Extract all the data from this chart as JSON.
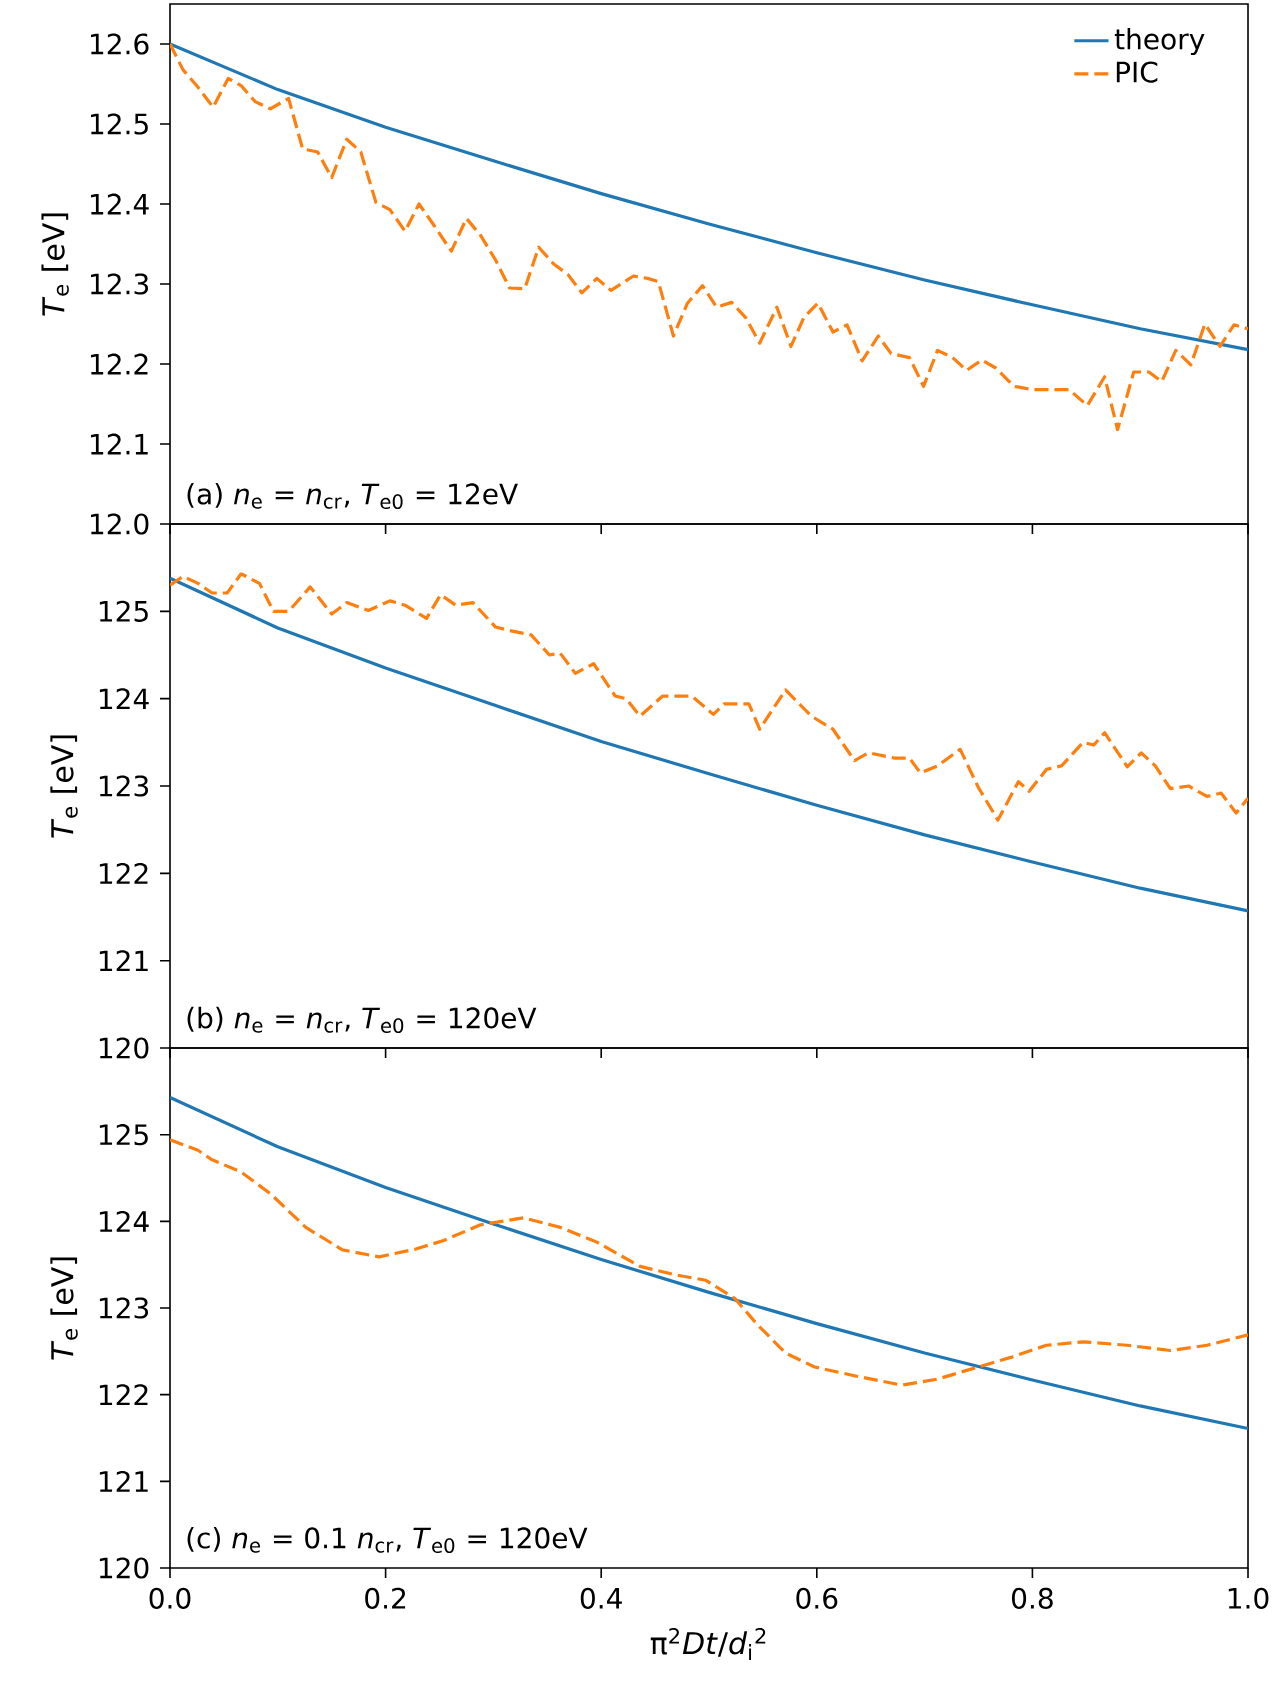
{
  "chart_data": [
    {
      "type": "line",
      "ylabel": "*T*$_{e}$ [eV]",
      "annotations": [
        "(a) *n*$_{e}$ = *n*$_{cr}$, *T*$_{e0}$ = 12eV"
      ],
      "xlim": [
        0,
        1
      ],
      "xticks": [
        {
          "value": 0,
          "label": null
        },
        {
          "value": 0.2,
          "label": null
        },
        {
          "value": 0.4,
          "label": null
        },
        {
          "value": 0.6,
          "label": null
        },
        {
          "value": 0.8,
          "label": null
        },
        {
          "value": 1,
          "label": null
        }
      ],
      "ylim": [
        12.0,
        12.65
      ],
      "yticks": [
        {
          "value": 12.0,
          "label": "12.0"
        },
        {
          "value": 12.1,
          "label": "12.1"
        },
        {
          "value": 12.2,
          "label": "12.2"
        },
        {
          "value": 12.3,
          "label": "12.3"
        },
        {
          "value": 12.4,
          "label": "12.4"
        },
        {
          "value": 12.5,
          "label": "12.5"
        },
        {
          "value": 12.6,
          "label": "12.6"
        }
      ],
      "tick_labels": "y",
      "legend": "top right",
      "series": [
        {
          "name": "theory",
          "color": "#1f77b4",
          "line_style": "solid",
          "x": [
            0,
            0.1,
            0.2,
            0.3,
            0.4,
            0.5,
            0.6,
            0.7,
            0.8,
            0.9,
            1.0
          ],
          "values": [
            12.6,
            12.543,
            12.496,
            12.454,
            12.413,
            12.375,
            12.339,
            12.305,
            12.274,
            12.244,
            12.218
          ]
        },
        {
          "name": "PIC",
          "color": "#ff7f0e",
          "line_style": "dashed",
          "x": [
            0,
            0.012,
            0.026,
            0.04,
            0.054,
            0.066,
            0.079,
            0.093,
            0.11,
            0.123,
            0.137,
            0.15,
            0.164,
            0.177,
            0.191,
            0.204,
            0.218,
            0.231,
            0.244,
            0.261,
            0.275,
            0.288,
            0.302,
            0.315,
            0.329,
            0.342,
            0.356,
            0.369,
            0.382,
            0.396,
            0.409,
            0.43,
            0.443,
            0.453,
            0.467,
            0.48,
            0.494,
            0.507,
            0.521,
            0.534,
            0.547,
            0.563,
            0.576,
            0.588,
            0.601,
            0.615,
            0.628,
            0.642,
            0.657,
            0.669,
            0.686,
            0.699,
            0.712,
            0.726,
            0.739,
            0.753,
            0.766,
            0.783,
            0.8,
            0.813,
            0.834,
            0.851,
            0.867,
            0.879,
            0.894,
            0.908,
            0.92,
            0.933,
            0.947,
            0.96,
            0.974,
            0.987,
            1.0
          ],
          "values": [
            12.6,
            12.568,
            12.546,
            12.521,
            12.557,
            12.548,
            12.528,
            12.519,
            12.532,
            12.469,
            12.465,
            12.433,
            12.481,
            12.465,
            12.402,
            12.393,
            12.366,
            12.4,
            12.375,
            12.341,
            12.382,
            12.361,
            12.33,
            12.295,
            12.294,
            12.346,
            12.325,
            12.312,
            12.289,
            12.307,
            12.292,
            12.31,
            12.307,
            12.303,
            12.235,
            12.276,
            12.298,
            12.271,
            12.277,
            12.258,
            12.226,
            12.271,
            12.222,
            12.258,
            12.276,
            12.24,
            12.249,
            12.204,
            12.235,
            12.213,
            12.208,
            12.172,
            12.217,
            12.208,
            12.192,
            12.205,
            12.195,
            12.172,
            12.168,
            12.168,
            12.168,
            12.148,
            12.184,
            12.118,
            12.19,
            12.19,
            12.178,
            12.217,
            12.199,
            12.25,
            12.222,
            12.249,
            12.244
          ]
        }
      ]
    },
    {
      "type": "line",
      "ylabel": "*T*$_{e}$ [eV]",
      "annotations": [
        "(b) *n*$_{e}$ = *n*$_{cr}$, *T*$_{e0}$ = 120eV"
      ],
      "xlim": [
        0,
        1
      ],
      "xticks": [
        {
          "value": 0,
          "label": null
        },
        {
          "value": 0.2,
          "label": null
        },
        {
          "value": 0.4,
          "label": null
        },
        {
          "value": 0.6,
          "label": null
        },
        {
          "value": 0.8,
          "label": null
        },
        {
          "value": 1,
          "label": null
        }
      ],
      "ylim": [
        120,
        126
      ],
      "yticks": [
        120,
        121,
        122,
        123,
        124,
        125
      ],
      "tick_labels": "y",
      "series": [
        {
          "color": "#1f77b4",
          "line_style": "solid",
          "x": [
            0,
            0.1,
            0.2,
            0.3,
            0.4,
            0.5,
            0.6,
            0.7,
            0.8,
            0.9,
            1.0
          ],
          "values": [
            125.38,
            124.81,
            124.35,
            123.93,
            123.51,
            123.14,
            122.78,
            122.44,
            122.13,
            121.83,
            121.57
          ]
        },
        {
          "color": "#ff7f0e",
          "line_style": "dashed",
          "x": [
            0,
            0.012,
            0.026,
            0.039,
            0.053,
            0.066,
            0.083,
            0.096,
            0.11,
            0.13,
            0.15,
            0.164,
            0.184,
            0.204,
            0.218,
            0.238,
            0.251,
            0.265,
            0.281,
            0.302,
            0.315,
            0.335,
            0.352,
            0.362,
            0.376,
            0.393,
            0.413,
            0.423,
            0.436,
            0.457,
            0.484,
            0.504,
            0.514,
            0.537,
            0.547,
            0.571,
            0.595,
            0.615,
            0.635,
            0.648,
            0.672,
            0.686,
            0.696,
            0.712,
            0.733,
            0.75,
            0.768,
            0.787,
            0.797,
            0.813,
            0.827,
            0.847,
            0.857,
            0.867,
            0.888,
            0.901,
            0.914,
            0.928,
            0.945,
            0.962,
            0.975,
            0.989,
            1.0
          ],
          "values": [
            125.3,
            125.4,
            125.32,
            125.21,
            125.21,
            125.43,
            125.32,
            125.0,
            125.0,
            125.28,
            124.97,
            125.1,
            125.01,
            125.12,
            125.07,
            124.92,
            125.19,
            125.07,
            125.1,
            124.82,
            124.78,
            124.73,
            124.5,
            124.52,
            124.29,
            124.4,
            124.03,
            124.0,
            123.8,
            124.03,
            124.03,
            123.82,
            123.94,
            123.94,
            123.65,
            124.1,
            123.8,
            123.65,
            123.29,
            123.38,
            123.32,
            123.32,
            123.15,
            123.23,
            123.42,
            122.98,
            122.61,
            123.05,
            122.94,
            123.19,
            123.23,
            123.5,
            123.47,
            123.61,
            123.22,
            123.38,
            123.23,
            122.97,
            123.0,
            122.88,
            122.92,
            122.69,
            122.86
          ]
        }
      ]
    },
    {
      "type": "line",
      "ylabel": "*T*$_{e}$ [eV]",
      "xlabel": "π$^{2}$*Dt*/*d*$_{i}$$^{2}$",
      "annotations": [
        "(c) *n*$_{e}$ = 0.1 *n*$_{cr}$, *T*$_{e0}$ = 120eV"
      ],
      "xlim": [
        0,
        1
      ],
      "xticks": [
        {
          "value": 0,
          "label": "0.0"
        },
        {
          "value": 0.2,
          "label": "0.2"
        },
        {
          "value": 0.4,
          "label": "0.4"
        },
        {
          "value": 0.6,
          "label": "0.6"
        },
        {
          "value": 0.8,
          "label": "0.8"
        },
        {
          "value": 1,
          "label": "1.0"
        }
      ],
      "ylim": [
        120,
        126
      ],
      "yticks": [
        120,
        121,
        122,
        123,
        124,
        125
      ],
      "series": [
        {
          "color": "#1f77b4",
          "line_style": "solid",
          "x": [
            0,
            0.1,
            0.2,
            0.3,
            0.4,
            0.5,
            0.6,
            0.7,
            0.8,
            0.9,
            1.0
          ],
          "values": [
            125.43,
            124.86,
            124.39,
            123.97,
            123.56,
            123.18,
            122.82,
            122.48,
            122.17,
            121.87,
            121.61
          ]
        },
        {
          "color": "#ff7f0e",
          "line_style": "dashed",
          "x": [
            0,
            0.026,
            0.039,
            0.066,
            0.093,
            0.126,
            0.16,
            0.194,
            0.228,
            0.254,
            0.288,
            0.328,
            0.362,
            0.396,
            0.436,
            0.47,
            0.497,
            0.524,
            0.544,
            0.571,
            0.598,
            0.638,
            0.679,
            0.712,
            0.739,
            0.78,
            0.813,
            0.847,
            0.888,
            0.928,
            0.962,
            1.0
          ],
          "values": [
            124.94,
            124.82,
            124.71,
            124.57,
            124.32,
            123.93,
            123.67,
            123.59,
            123.68,
            123.78,
            123.96,
            124.04,
            123.93,
            123.76,
            123.48,
            123.38,
            123.32,
            123.11,
            122.82,
            122.48,
            122.32,
            122.21,
            122.11,
            122.18,
            122.28,
            122.43,
            122.57,
            122.61,
            122.57,
            122.51,
            122.57,
            122.69
          ]
        }
      ]
    }
  ]
}
